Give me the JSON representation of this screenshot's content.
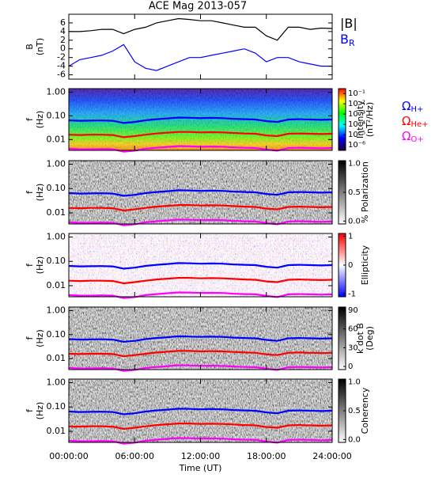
{
  "title": "ACE Mag 2013-057",
  "x_axis": {
    "label": "Time (UT)",
    "xlim": [
      0,
      24
    ],
    "xticks": [
      {
        "value": 0,
        "label": "00:00:00"
      },
      {
        "value": 6,
        "label": "06:00:00"
      },
      {
        "value": 12,
        "label": "12:00:00"
      },
      {
        "value": 18,
        "label": "18:00:00"
      },
      {
        "value": 24,
        "label": "24:00:00"
      }
    ]
  },
  "gyro_lines": {
    "x": [
      0,
      1,
      2,
      3,
      4,
      5,
      6,
      7,
      8,
      9,
      10,
      11,
      12,
      13,
      14,
      15,
      16,
      17,
      18,
      19,
      20,
      21,
      22,
      23,
      24
    ],
    "series": [
      {
        "name": "Ω",
        "subscript": "H+",
        "color": "#0000ff",
        "values": [
          0.065,
          0.062,
          0.063,
          0.064,
          0.062,
          0.05,
          0.055,
          0.065,
          0.072,
          0.078,
          0.085,
          0.083,
          0.08,
          0.082,
          0.08,
          0.075,
          0.072,
          0.07,
          0.06,
          0.055,
          0.07,
          0.072,
          0.07,
          0.068,
          0.07
        ]
      },
      {
        "name": "Ω",
        "subscript": "He+",
        "color": "#ff0000",
        "values": [
          0.016,
          0.0155,
          0.016,
          0.016,
          0.0155,
          0.0125,
          0.014,
          0.016,
          0.018,
          0.0195,
          0.021,
          0.021,
          0.02,
          0.0205,
          0.02,
          0.019,
          0.018,
          0.0175,
          0.015,
          0.014,
          0.0175,
          0.018,
          0.0175,
          0.017,
          0.0175
        ]
      },
      {
        "name": "Ω",
        "subscript": "O+",
        "color": "#ff00ff",
        "values": [
          0.0041,
          0.0039,
          0.0039,
          0.004,
          0.0039,
          0.0031,
          0.0034,
          0.0041,
          0.0045,
          0.0049,
          0.0053,
          0.0052,
          0.005,
          0.0051,
          0.005,
          0.0047,
          0.0045,
          0.0044,
          0.0038,
          0.0034,
          0.0044,
          0.0045,
          0.0044,
          0.0043,
          0.0044
        ]
      }
    ]
  },
  "chart_data": [
    {
      "type": "line",
      "ylabel": [
        "B",
        "(nT)"
      ],
      "ylim": [
        -7,
        8
      ],
      "yticks": [
        -6,
        -4,
        -2,
        0,
        2,
        4,
        6
      ],
      "x": [
        0,
        1,
        2,
        3,
        4,
        5,
        6,
        7,
        8,
        9,
        10,
        11,
        12,
        13,
        14,
        15,
        16,
        17,
        18,
        19,
        20,
        21,
        22,
        23,
        24
      ],
      "series": [
        {
          "name": "|B|",
          "color": "#000000",
          "values": [
            4,
            4,
            4.2,
            4.5,
            4.5,
            3.5,
            4.5,
            5,
            6,
            6.5,
            7,
            6.8,
            6.5,
            6.5,
            6,
            5.5,
            5,
            5,
            3,
            2,
            5,
            5,
            4.5,
            4.8,
            4.7
          ]
        },
        {
          "name": "B",
          "subscript": "R",
          "color": "#0000ff",
          "values": [
            -4,
            -2.5,
            -2,
            -1.5,
            -0.5,
            1,
            -3,
            -4.5,
            -5,
            -4,
            -3,
            -2,
            -2,
            -1.5,
            -1,
            -0.5,
            0,
            -1,
            -3,
            -2,
            -2,
            -3,
            -3.5,
            -4,
            -4
          ]
        }
      ]
    },
    {
      "type": "spectrogram",
      "texture": "intensity",
      "ylabel": [
        "f",
        "(Hz)"
      ],
      "ylim": [
        0.0035,
        1.4
      ],
      "log_y": true,
      "yticks": [
        {
          "value": 1,
          "label": "1.00"
        },
        {
          "value": 0.1,
          "label": "0.10"
        },
        {
          "value": 0.01,
          "label": "0.01"
        }
      ],
      "colorbar": {
        "label": [
          "Intensity",
          "(nT²/Hz)"
        ],
        "lim": [
          3e-07,
          0.3
        ],
        "log": true,
        "gradient": "rainbow",
        "ticks": [
          {
            "value": 0.1,
            "label": "10⁻¹"
          },
          {
            "value": 0.01,
            "label": "10⁻²"
          },
          {
            "value": 0.001,
            "label": "10⁻³"
          },
          {
            "value": 0.0001,
            "label": "10⁻⁴"
          },
          {
            "value": 1e-05,
            "label": "10⁻⁵"
          },
          {
            "value": 1e-06,
            "label": "10⁻⁶"
          }
        ]
      },
      "gyro_legend": true
    },
    {
      "type": "spectrogram",
      "texture": "gray",
      "ylabel": [
        "f",
        "(Hz)"
      ],
      "ylim": [
        0.0035,
        1.4
      ],
      "log_y": true,
      "yticks": [
        {
          "value": 1,
          "label": "1.00"
        },
        {
          "value": 0.1,
          "label": "0.10"
        },
        {
          "value": 0.01,
          "label": "0.01"
        }
      ],
      "colorbar": {
        "label": [
          "% Polarization"
        ],
        "lim": [
          -0.05,
          1.05
        ],
        "gradient": "gray",
        "ticks": [
          {
            "value": 1,
            "label": "1.0"
          },
          {
            "value": 0.5,
            "label": "0.5"
          },
          {
            "value": 0,
            "label": "0.0"
          }
        ]
      }
    },
    {
      "type": "spectrogram",
      "texture": "redblue",
      "ylabel": [
        "f",
        "(Hz)"
      ],
      "ylim": [
        0.0035,
        1.4
      ],
      "log_y": true,
      "yticks": [
        {
          "value": 1,
          "label": "1.00"
        },
        {
          "value": 0.1,
          "label": "0.10"
        },
        {
          "value": 0.01,
          "label": "0.01"
        }
      ],
      "colorbar": {
        "label": [
          "Ellipticity"
        ],
        "lim": [
          -1.1,
          1.1
        ],
        "gradient": "redblue",
        "ticks": [
          1,
          0,
          -1
        ]
      }
    },
    {
      "type": "spectrogram",
      "texture": "gray",
      "ylabel": [
        "f",
        "(Hz)"
      ],
      "ylim": [
        0.0035,
        1.4
      ],
      "log_y": true,
      "yticks": [
        {
          "value": 1,
          "label": "1.00"
        },
        {
          "value": 0.1,
          "label": "0.10"
        },
        {
          "value": 0.01,
          "label": "0.01"
        }
      ],
      "colorbar": {
        "label": [
          "k dot B",
          "(Deg)"
        ],
        "lim": [
          -5,
          95
        ],
        "gradient": "gray",
        "ticks": [
          90,
          60,
          30,
          0
        ]
      }
    },
    {
      "type": "spectrogram",
      "texture": "gray",
      "ylabel": [
        "f",
        "(Hz)"
      ],
      "ylim": [
        0.0035,
        1.4
      ],
      "log_y": true,
      "yticks": [
        {
          "value": 1,
          "label": "1.00"
        },
        {
          "value": 0.1,
          "label": "0.10"
        },
        {
          "value": 0.01,
          "label": "0.01"
        }
      ],
      "colorbar": {
        "label": [
          "Coherency"
        ],
        "lim": [
          -0.05,
          1.05
        ],
        "gradient": "gray",
        "ticks": [
          {
            "value": 1,
            "label": "1.0"
          },
          {
            "value": 0.5,
            "label": "0.5"
          },
          {
            "value": 0,
            "label": "0.0"
          }
        ]
      },
      "show_xlabels": true
    }
  ]
}
